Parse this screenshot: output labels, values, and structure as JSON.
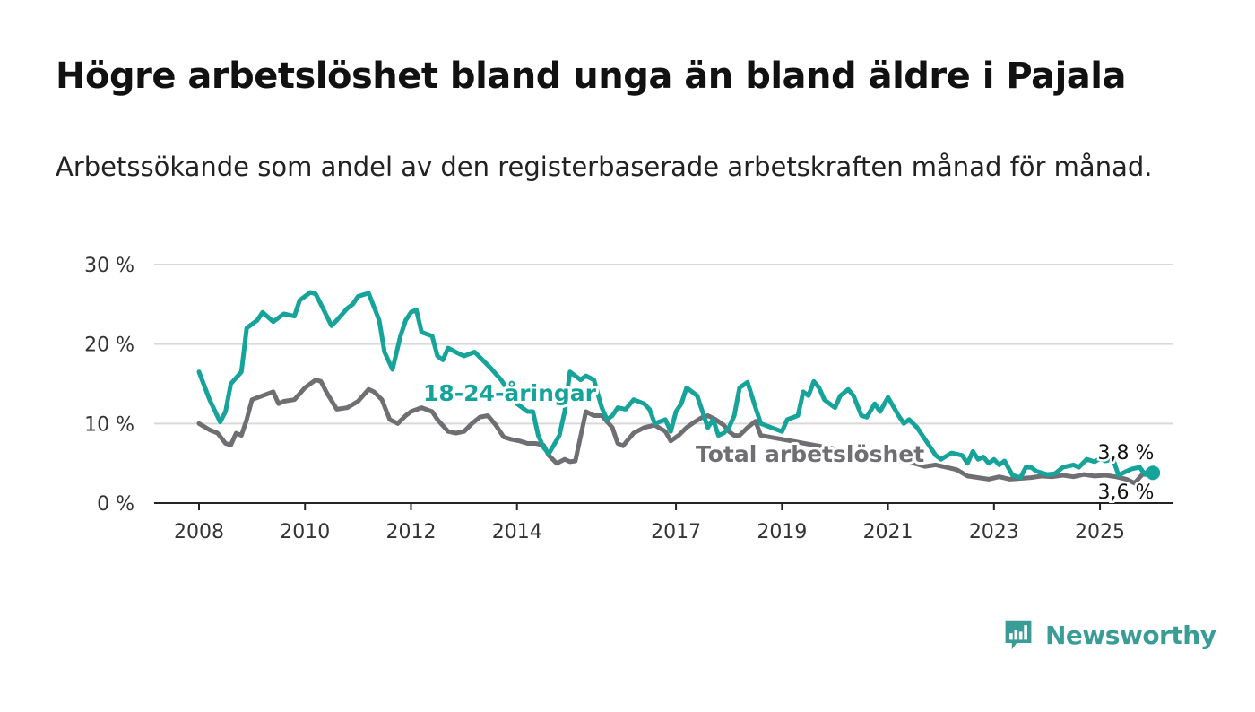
{
  "title": "Högre arbetslöshet bland unga än bland äldre i Pajala",
  "subtitle": "Arbetssökande som andel av den registerbaserade arbetskraften månad för månad.",
  "logo": {
    "text": "Newsworthy",
    "icon": "newsworthy-logo-icon"
  },
  "colors": {
    "young": "#16a39a",
    "total": "#6f6f73",
    "grid": "#d9d9d9"
  },
  "chart_data": {
    "type": "line",
    "title": "Högre arbetslöshet bland unga än bland äldre i Pajala",
    "subtitle": "Arbetssökande som andel av den registerbaserade arbetskraften månad för månad.",
    "xlabel": "",
    "ylabel": "",
    "ylim": [
      0,
      30
    ],
    "xlim": [
      2008,
      2026.2
    ],
    "grid": true,
    "y_ticks": [
      0,
      10,
      20,
      30
    ],
    "y_tick_labels": [
      "0 %",
      "10 %",
      "20 %",
      "30 %"
    ],
    "x_ticks": [
      2008,
      2010,
      2012,
      2014,
      2017,
      2019,
      2021,
      2023,
      2025
    ],
    "x_tick_labels": [
      "2008",
      "2010",
      "2012",
      "2014",
      "2017",
      "2019",
      "2021",
      "2023",
      "2025"
    ],
    "series": [
      {
        "name": "18-24-åringar",
        "key": "young",
        "end_label": "3,8 %",
        "points": [
          [
            2008.0,
            16.5
          ],
          [
            2008.2,
            13.0
          ],
          [
            2008.4,
            10.2
          ],
          [
            2008.5,
            11.5
          ],
          [
            2008.6,
            15.0
          ],
          [
            2008.8,
            16.5
          ],
          [
            2008.9,
            22.0
          ],
          [
            2009.1,
            23.0
          ],
          [
            2009.2,
            24.0
          ],
          [
            2009.4,
            22.8
          ],
          [
            2009.6,
            23.8
          ],
          [
            2009.8,
            23.5
          ],
          [
            2009.9,
            25.5
          ],
          [
            2010.1,
            26.5
          ],
          [
            2010.2,
            26.3
          ],
          [
            2010.3,
            25.0
          ],
          [
            2010.5,
            22.3
          ],
          [
            2010.6,
            23.0
          ],
          [
            2010.8,
            24.5
          ],
          [
            2010.9,
            25.0
          ],
          [
            2011.0,
            26.0
          ],
          [
            2011.2,
            26.4
          ],
          [
            2011.4,
            23.0
          ],
          [
            2011.5,
            19.0
          ],
          [
            2011.65,
            16.8
          ],
          [
            2011.8,
            21.0
          ],
          [
            2011.9,
            23.0
          ],
          [
            2012.0,
            24.0
          ],
          [
            2012.1,
            24.3
          ],
          [
            2012.2,
            21.5
          ],
          [
            2012.4,
            21.0
          ],
          [
            2012.5,
            18.5
          ],
          [
            2012.6,
            18.0
          ],
          [
            2012.7,
            19.5
          ],
          [
            2012.9,
            18.8
          ],
          [
            2013.0,
            18.5
          ],
          [
            2013.2,
            19.0
          ],
          [
            2013.35,
            18.0
          ],
          [
            2013.5,
            17.0
          ],
          [
            2013.7,
            15.5
          ],
          [
            2013.8,
            14.5
          ],
          [
            2013.9,
            13.5
          ],
          [
            2014.0,
            12.5
          ],
          [
            2014.2,
            11.5
          ],
          [
            2014.3,
            11.5
          ],
          [
            2014.4,
            8.5
          ],
          [
            2014.5,
            7.0
          ],
          [
            2014.6,
            6.2
          ],
          [
            2014.8,
            8.5
          ],
          [
            2014.9,
            11.5
          ],
          [
            2015.0,
            16.5
          ],
          [
            2015.2,
            15.5
          ],
          [
            2015.3,
            16.0
          ],
          [
            2015.45,
            15.5
          ],
          [
            2015.6,
            12.0
          ],
          [
            2015.7,
            10.5
          ],
          [
            2015.8,
            11.0
          ],
          [
            2015.9,
            12.0
          ],
          [
            2016.05,
            11.8
          ],
          [
            2016.2,
            13.0
          ],
          [
            2016.4,
            12.5
          ],
          [
            2016.5,
            11.8
          ],
          [
            2016.6,
            10.0
          ],
          [
            2016.8,
            10.5
          ],
          [
            2016.9,
            9.0
          ],
          [
            2017.0,
            11.5
          ],
          [
            2017.1,
            12.5
          ],
          [
            2017.2,
            14.5
          ],
          [
            2017.4,
            13.5
          ],
          [
            2017.5,
            11.5
          ],
          [
            2017.6,
            9.5
          ],
          [
            2017.7,
            10.5
          ],
          [
            2017.8,
            8.5
          ],
          [
            2017.9,
            8.8
          ],
          [
            2018.0,
            9.5
          ],
          [
            2018.1,
            11.0
          ],
          [
            2018.2,
            14.5
          ],
          [
            2018.35,
            15.2
          ],
          [
            2018.5,
            12.0
          ],
          [
            2018.6,
            10.0
          ],
          [
            2018.8,
            9.5
          ],
          [
            2019.0,
            9.0
          ],
          [
            2019.1,
            10.5
          ],
          [
            2019.3,
            11.0
          ],
          [
            2019.4,
            14.0
          ],
          [
            2019.5,
            13.5
          ],
          [
            2019.6,
            15.3
          ],
          [
            2019.7,
            14.5
          ],
          [
            2019.8,
            13.0
          ],
          [
            2019.9,
            12.5
          ],
          [
            2020.0,
            12.0
          ],
          [
            2020.1,
            13.5
          ],
          [
            2020.25,
            14.3
          ],
          [
            2020.35,
            13.5
          ],
          [
            2020.5,
            11.0
          ],
          [
            2020.6,
            10.8
          ],
          [
            2020.75,
            12.5
          ],
          [
            2020.85,
            11.5
          ],
          [
            2021.0,
            13.3
          ],
          [
            2021.2,
            11.0
          ],
          [
            2021.3,
            10.0
          ],
          [
            2021.4,
            10.5
          ],
          [
            2021.55,
            9.5
          ],
          [
            2021.7,
            8.0
          ],
          [
            2021.8,
            7.0
          ],
          [
            2021.9,
            6.0
          ],
          [
            2022.0,
            5.5
          ],
          [
            2022.2,
            6.3
          ],
          [
            2022.4,
            6.0
          ],
          [
            2022.5,
            5.0
          ],
          [
            2022.6,
            6.5
          ],
          [
            2022.7,
            5.5
          ],
          [
            2022.8,
            5.8
          ],
          [
            2022.9,
            5.0
          ],
          [
            2023.0,
            5.5
          ],
          [
            2023.1,
            4.8
          ],
          [
            2023.2,
            5.3
          ],
          [
            2023.35,
            3.5
          ],
          [
            2023.5,
            3.2
          ],
          [
            2023.6,
            4.5
          ],
          [
            2023.7,
            4.5
          ],
          [
            2023.8,
            4.0
          ],
          [
            2023.9,
            3.8
          ],
          [
            2024.0,
            3.6
          ],
          [
            2024.15,
            3.7
          ],
          [
            2024.3,
            4.5
          ],
          [
            2024.5,
            4.8
          ],
          [
            2024.6,
            4.5
          ],
          [
            2024.75,
            5.5
          ],
          [
            2024.9,
            5.2
          ],
          [
            2025.0,
            5.6
          ],
          [
            2025.1,
            5.3
          ],
          [
            2025.25,
            5.5
          ],
          [
            2025.35,
            3.5
          ],
          [
            2025.5,
            4.0
          ],
          [
            2025.6,
            4.3
          ],
          [
            2025.75,
            4.5
          ],
          [
            2025.85,
            3.6
          ],
          [
            2025.9,
            4.0
          ],
          [
            2026.0,
            3.8
          ]
        ]
      },
      {
        "name": "Total arbetslöshet",
        "key": "total",
        "end_label": "3,6 %",
        "points": [
          [
            2008.0,
            10.0
          ],
          [
            2008.2,
            9.2
          ],
          [
            2008.35,
            8.8
          ],
          [
            2008.5,
            7.5
          ],
          [
            2008.6,
            7.3
          ],
          [
            2008.7,
            8.8
          ],
          [
            2008.8,
            8.5
          ],
          [
            2008.9,
            10.5
          ],
          [
            2009.0,
            13.0
          ],
          [
            2009.2,
            13.5
          ],
          [
            2009.4,
            14.0
          ],
          [
            2009.5,
            12.5
          ],
          [
            2009.6,
            12.8
          ],
          [
            2009.8,
            13.0
          ],
          [
            2010.0,
            14.5
          ],
          [
            2010.2,
            15.5
          ],
          [
            2010.3,
            15.3
          ],
          [
            2010.4,
            14.0
          ],
          [
            2010.6,
            11.8
          ],
          [
            2010.8,
            12.0
          ],
          [
            2011.0,
            12.8
          ],
          [
            2011.2,
            14.3
          ],
          [
            2011.3,
            14.0
          ],
          [
            2011.45,
            13.0
          ],
          [
            2011.6,
            10.5
          ],
          [
            2011.75,
            10.0
          ],
          [
            2011.9,
            11.0
          ],
          [
            2012.0,
            11.5
          ],
          [
            2012.2,
            12.0
          ],
          [
            2012.4,
            11.5
          ],
          [
            2012.5,
            10.5
          ],
          [
            2012.7,
            9.0
          ],
          [
            2012.85,
            8.8
          ],
          [
            2013.0,
            9.0
          ],
          [
            2013.15,
            10.0
          ],
          [
            2013.3,
            10.8
          ],
          [
            2013.45,
            11.0
          ],
          [
            2013.6,
            9.8
          ],
          [
            2013.75,
            8.3
          ],
          [
            2013.9,
            8.0
          ],
          [
            2014.05,
            7.8
          ],
          [
            2014.2,
            7.5
          ],
          [
            2014.35,
            7.5
          ],
          [
            2014.5,
            7.3
          ],
          [
            2014.6,
            6.0
          ],
          [
            2014.75,
            5.0
          ],
          [
            2014.9,
            5.5
          ],
          [
            2015.0,
            5.2
          ],
          [
            2015.1,
            5.3
          ],
          [
            2015.3,
            11.5
          ],
          [
            2015.45,
            11.0
          ],
          [
            2015.6,
            11.0
          ],
          [
            2015.8,
            9.5
          ],
          [
            2015.9,
            7.5
          ],
          [
            2016.0,
            7.2
          ],
          [
            2016.2,
            8.8
          ],
          [
            2016.4,
            9.5
          ],
          [
            2016.6,
            9.8
          ],
          [
            2016.8,
            9.0
          ],
          [
            2016.9,
            7.8
          ],
          [
            2017.05,
            8.5
          ],
          [
            2017.2,
            9.5
          ],
          [
            2017.35,
            10.2
          ],
          [
            2017.5,
            10.8
          ],
          [
            2017.6,
            11.0
          ],
          [
            2017.75,
            10.5
          ],
          [
            2017.9,
            9.8
          ],
          [
            2018.0,
            9.0
          ],
          [
            2018.1,
            8.5
          ],
          [
            2018.2,
            8.5
          ],
          [
            2018.35,
            9.5
          ],
          [
            2018.5,
            10.3
          ],
          [
            2018.6,
            8.5
          ],
          [
            2021.5,
            5.0
          ],
          [
            2021.7,
            4.6
          ],
          [
            2021.9,
            4.8
          ],
          [
            2022.1,
            4.5
          ],
          [
            2022.3,
            4.2
          ],
          [
            2022.5,
            3.4
          ],
          [
            2022.7,
            3.2
          ],
          [
            2022.9,
            3.0
          ],
          [
            2023.1,
            3.3
          ],
          [
            2023.3,
            3.0
          ],
          [
            2023.5,
            3.1
          ],
          [
            2023.7,
            3.2
          ],
          [
            2023.9,
            3.4
          ],
          [
            2024.1,
            3.3
          ],
          [
            2024.3,
            3.5
          ],
          [
            2024.5,
            3.3
          ],
          [
            2024.7,
            3.6
          ],
          [
            2024.9,
            3.4
          ],
          [
            2025.1,
            3.5
          ],
          [
            2025.3,
            3.3
          ],
          [
            2025.5,
            3.0
          ],
          [
            2025.65,
            2.5
          ],
          [
            2025.8,
            3.6
          ],
          [
            2026.0,
            3.6
          ]
        ]
      }
    ]
  }
}
